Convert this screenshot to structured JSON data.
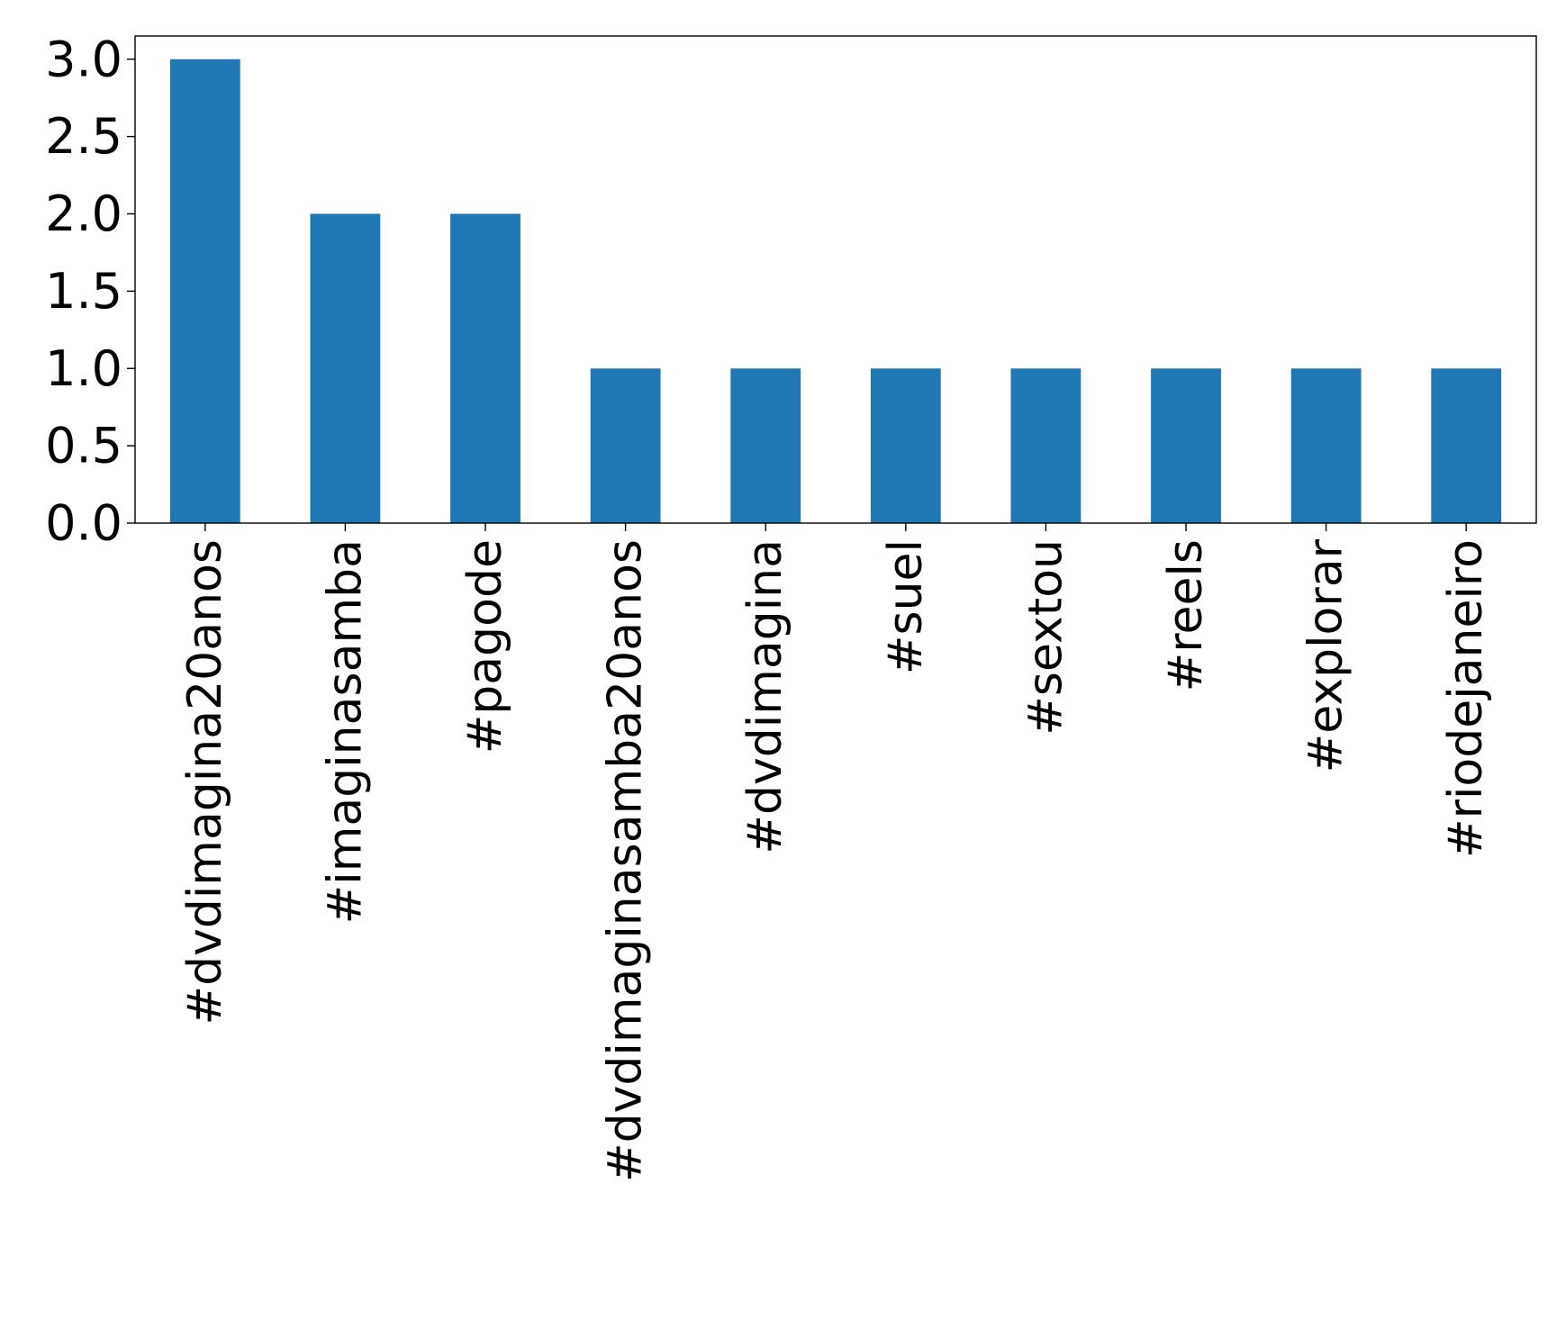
{
  "chart_data": {
    "type": "bar",
    "categories": [
      "#dvdimagina20anos",
      "#imaginasamba",
      "#pagode",
      "#dvdimaginasamba20anos",
      "#dvdimagina",
      "#suel",
      "#sextou",
      "#reels",
      "#explorar",
      "#riodejaneiro"
    ],
    "values": [
      3,
      2,
      2,
      1,
      1,
      1,
      1,
      1,
      1,
      1
    ],
    "title": "",
    "xlabel": "",
    "ylabel": "",
    "ylim": [
      0,
      3.15
    ],
    "yticks": [
      "0.0",
      "0.5",
      "1.0",
      "1.5",
      "2.0",
      "2.5",
      "3.0"
    ],
    "grid": false,
    "bar_color": "#1f77b4"
  }
}
